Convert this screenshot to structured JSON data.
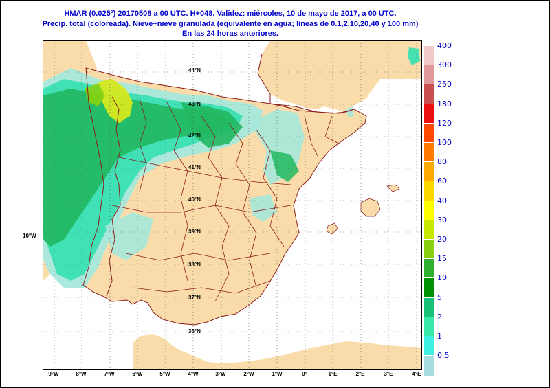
{
  "title": {
    "line1": "HMAR (0.025º) 20170508 a 00 UTC.  H+048.  Validez: miércoles, 10 de mayo de 2017,  a  00 UTC.",
    "line2": "Precip. total (coloreada). Nieve+nieve granulada (equivalente en agua; líneas de 0.1,2,10,20,40 y 100 mm)",
    "line3": "En las 24 horas anteriores."
  },
  "map": {
    "lat_labels": [
      "44°N",
      "43°N",
      "42°N",
      "41°N",
      "40°N",
      "39°N",
      "38°N",
      "37°N",
      "36°N"
    ],
    "lon_labels": [
      "9°W",
      "8°W",
      "7°W",
      "6°W",
      "5°W",
      "4°W",
      "3°W",
      "2°W",
      "1°W",
      "0°",
      "1°E",
      "2°E",
      "3°E",
      "4°E"
    ],
    "side_lon_label": "10°W",
    "colors": {
      "land": "#fadcaa",
      "sea": "#ffffff",
      "border": "#8b1a1a",
      "precip_light": "#a6e8dc",
      "precip_mid": "#33e0b0",
      "precip_heavy": "#22b860",
      "precip_core": "#d4e820"
    }
  },
  "legend": {
    "items": [
      {
        "label": "400",
        "color": "#f0c8c8"
      },
      {
        "label": "300",
        "color": "#e09898"
      },
      {
        "label": "250",
        "color": "#c85050"
      },
      {
        "label": "180",
        "color": "#ee1010"
      },
      {
        "label": "120",
        "color": "#ff4800"
      },
      {
        "label": "100",
        "color": "#ff7a00"
      },
      {
        "label": "80",
        "color": "#ffaa00"
      },
      {
        "label": "60",
        "color": "#ffd800"
      },
      {
        "label": "40",
        "color": "#ffff00"
      },
      {
        "label": "30",
        "color": "#c8e800"
      },
      {
        "label": "20",
        "color": "#88d010"
      },
      {
        "label": "15",
        "color": "#30b030"
      },
      {
        "label": "10",
        "color": "#009000"
      },
      {
        "label": "5",
        "color": "#18c078"
      },
      {
        "label": "2",
        "color": "#38e8a8"
      },
      {
        "label": "1",
        "color": "#40f0e0"
      },
      {
        "label": "0.5",
        "color": "#a8dce0"
      }
    ]
  }
}
